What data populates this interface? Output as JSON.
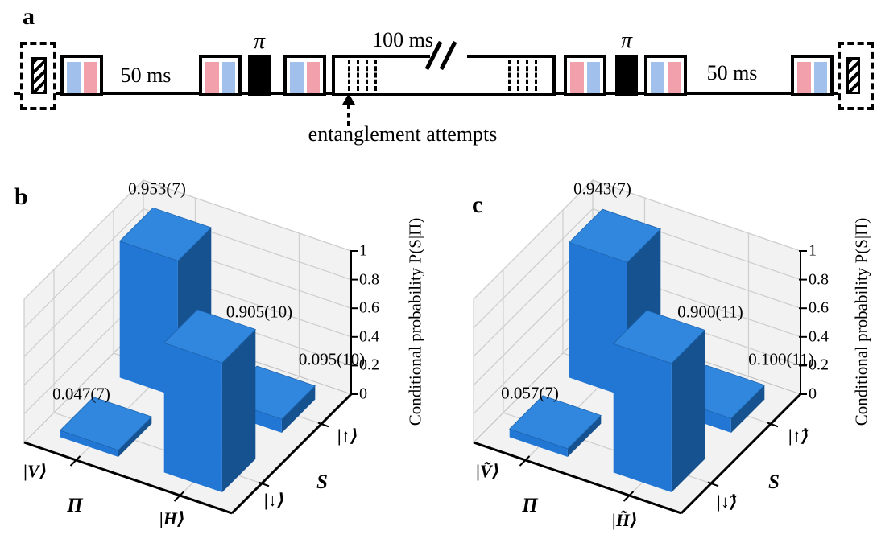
{
  "panels": {
    "a_label": "a",
    "b_label": "b",
    "c_label": "c"
  },
  "colors": {
    "pulse_pink": "#f2a0ab",
    "pulse_blue": "#a2c0ec",
    "bar_front": "#2277d4",
    "bar_top": "#3187dd",
    "bar_side": "#16528f",
    "pane_fill": "#f2f2f3",
    "grid_line": "#cfcfcf",
    "pane_edge": "#c2c2c2"
  },
  "pulse_sequence": {
    "wait_left_label": "50 ms",
    "pi_label_left": "π",
    "middle_label": "100 ms",
    "pi_label_right": "π",
    "wait_right_label": "50 ms",
    "annotation": "entanglement attempts"
  },
  "chart_data": [
    {
      "type": "bar3d",
      "panel": "b",
      "x_axis": {
        "label": "Π",
        "ticks": [
          "|V⟩",
          "|H⟩"
        ]
      },
      "y_axis": {
        "label": "S",
        "ticks": [
          "|↓⟩",
          "|↑⟩"
        ]
      },
      "z_axis": {
        "label": "Conditional probability P(S|Π)",
        "ticks": [
          0,
          0.2,
          0.4,
          0.6,
          0.8,
          1
        ],
        "range": [
          0,
          1
        ]
      },
      "bars": [
        {
          "pi_state": "|V⟩",
          "s_state": "|↓⟩",
          "value": 0.047,
          "label": "0.047(7)"
        },
        {
          "pi_state": "|V⟩",
          "s_state": "|↑⟩",
          "value": 0.953,
          "label": "0.953(7)"
        },
        {
          "pi_state": "|H⟩",
          "s_state": "|↓⟩",
          "value": 0.905,
          "label": "0.905(10)"
        },
        {
          "pi_state": "|H⟩",
          "s_state": "|↑⟩",
          "value": 0.095,
          "label": "0.095(10)"
        }
      ]
    },
    {
      "type": "bar3d",
      "panel": "c",
      "x_axis": {
        "label": "Π",
        "ticks": [
          "|Ṽ⟩",
          "|H̃⟩"
        ]
      },
      "y_axis": {
        "label": "S",
        "ticks": [
          "|↓̃⟩",
          "|↑̃⟩"
        ]
      },
      "z_axis": {
        "label": "Conditional probability P(S|Π)",
        "ticks": [
          0,
          0.2,
          0.4,
          0.6,
          0.8,
          1
        ],
        "range": [
          0,
          1
        ]
      },
      "bars": [
        {
          "pi_state": "|Ṽ⟩",
          "s_state": "|↓̃⟩",
          "value": 0.057,
          "label": "0.057(7)"
        },
        {
          "pi_state": "|Ṽ⟩",
          "s_state": "|↑̃⟩",
          "value": 0.943,
          "label": "0.943(7)"
        },
        {
          "pi_state": "|H̃⟩",
          "s_state": "|↓̃⟩",
          "value": 0.9,
          "label": "0.900(11)"
        },
        {
          "pi_state": "|H̃⟩",
          "s_state": "|↑̃⟩",
          "value": 0.1,
          "label": "0.100(11)"
        }
      ]
    }
  ]
}
